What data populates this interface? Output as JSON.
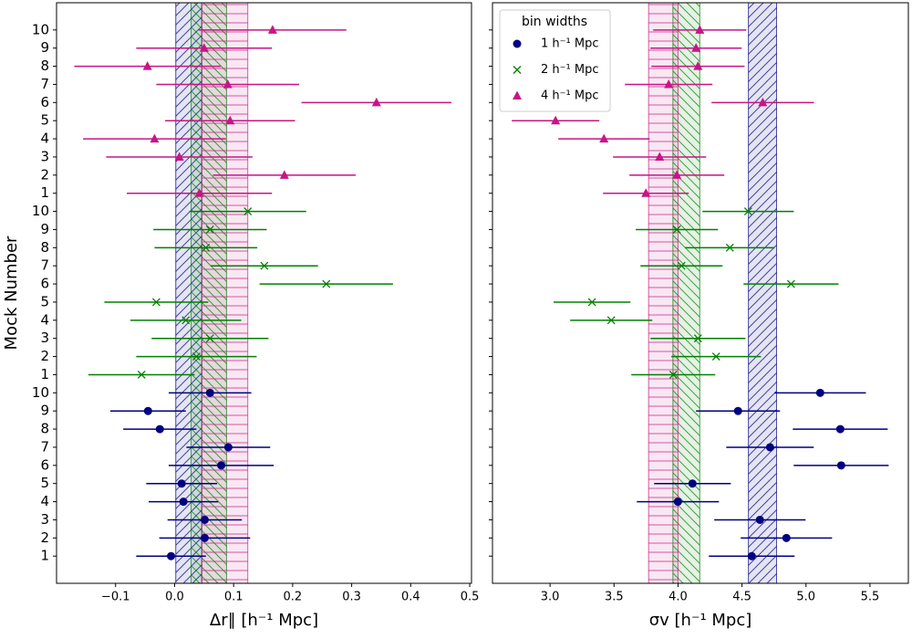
{
  "chart_data": [
    {
      "type": "errorbar",
      "xlabel": "Δr∥ [h⁻¹ Mpc]",
      "ylabel": "Mock Number",
      "xlim": [
        -0.2,
        0.503
      ],
      "ylim": [
        -0.5,
        31.5
      ],
      "xticks": [
        {
          "value": -0.1,
          "label": "−0.1"
        },
        {
          "value": 0,
          "label": "0.0"
        },
        0.1,
        0.2,
        0.3,
        0.4,
        0.5
      ],
      "yticks": [
        1,
        2,
        3,
        4,
        5,
        6,
        7,
        8,
        9,
        10,
        {
          "value": 11,
          "label": "1"
        },
        {
          "value": 12,
          "label": "2"
        },
        {
          "value": 13,
          "label": "3"
        },
        {
          "value": 14,
          "label": "4"
        },
        {
          "value": 15,
          "label": "5"
        },
        {
          "value": 16,
          "label": "6"
        },
        {
          "value": 17,
          "label": "7"
        },
        {
          "value": 18,
          "label": "8"
        },
        {
          "value": 19,
          "label": "9"
        },
        {
          "value": 20,
          "label": "10"
        },
        {
          "value": 21,
          "label": "1"
        },
        {
          "value": 22,
          "label": "2"
        },
        {
          "value": 23,
          "label": "3"
        },
        {
          "value": 24,
          "label": "4"
        },
        {
          "value": 25,
          "label": "5"
        },
        {
          "value": 26,
          "label": "6"
        },
        {
          "value": 27,
          "label": "7"
        },
        {
          "value": 28,
          "label": "8"
        },
        {
          "value": 29,
          "label": "9"
        },
        {
          "value": 30,
          "label": "10"
        }
      ],
      "series": [
        {
          "color": "#000080",
          "marker": "circle",
          "hatch": "/",
          "band": [
            0.002,
            0.046
          ],
          "y": [
            1,
            2,
            3,
            4,
            5,
            6,
            7,
            8,
            9,
            10
          ],
          "x": [
            -0.006,
            0.051,
            0.051,
            0.015,
            0.012,
            0.079,
            0.091,
            -0.025,
            -0.045,
            0.06
          ],
          "xerr": [
            0.059,
            0.077,
            0.063,
            0.059,
            0.06,
            0.089,
            0.071,
            0.062,
            0.064,
            0.07
          ]
        },
        {
          "color": "#008000",
          "marker": "x",
          "hatch": "\\",
          "band": [
            0.028,
            0.088
          ],
          "y": [
            11,
            12,
            13,
            14,
            15,
            16,
            17,
            18,
            19,
            20
          ],
          "x": [
            -0.056,
            0.037,
            0.06,
            0.019,
            -0.031,
            0.257,
            0.152,
            0.053,
            0.06,
            0.124
          ],
          "xerr": [
            0.09,
            0.102,
            0.099,
            0.094,
            0.088,
            0.113,
            0.091,
            0.087,
            0.096,
            0.099
          ]
        },
        {
          "color": "#c71585",
          "marker": "triangle",
          "hatch": "-",
          "band": [
            0.046,
            0.124
          ],
          "y": [
            21,
            22,
            23,
            24,
            25,
            26,
            27,
            28,
            29,
            30
          ],
          "x": [
            0.042,
            0.186,
            0.008,
            -0.034,
            0.094,
            0.342,
            0.09,
            -0.046,
            0.05,
            0.166
          ],
          "xerr": [
            0.123,
            0.121,
            0.124,
            0.121,
            0.11,
            0.127,
            0.121,
            0.124,
            0.115,
            0.125
          ]
        }
      ]
    },
    {
      "type": "errorbar",
      "xlabel": "σv [h⁻¹ Mpc]",
      "xlim": [
        2.55,
        5.8
      ],
      "ylim": [
        -0.5,
        31.5
      ],
      "xticks": [
        {
          "value": 3,
          "label": "3.0"
        },
        3.5,
        {
          "value": 4,
          "label": "4.0"
        },
        4.5,
        {
          "value": 5,
          "label": "5.0"
        },
        5.5
      ],
      "yticks": [
        1,
        2,
        3,
        4,
        5,
        6,
        7,
        8,
        9,
        10,
        11,
        12,
        13,
        14,
        15,
        16,
        17,
        18,
        19,
        20,
        21,
        22,
        23,
        24,
        25,
        26,
        27,
        28,
        29,
        30
      ],
      "legend": {
        "title": "bin widths",
        "loc": "upper left"
      },
      "series": [
        {
          "name": "1 h⁻¹ Mpc",
          "color": "#000080",
          "marker": "circle",
          "hatch": "/",
          "band": [
            4.55,
            4.77
          ],
          "y": [
            1,
            2,
            3,
            4,
            5,
            6,
            7,
            8,
            9,
            10
          ],
          "x": [
            4.576,
            4.847,
            4.64,
            3.999,
            4.113,
            5.275,
            4.719,
            5.268,
            4.469,
            5.111
          ],
          "xerr": [
            0.335,
            0.357,
            0.357,
            0.321,
            0.3,
            0.371,
            0.342,
            0.371,
            0.328,
            0.357
          ]
        },
        {
          "name": "2 h⁻¹ Mpc",
          "color": "#008000",
          "marker": "x",
          "hatch": "\\",
          "band": [
            3.96,
            4.17
          ],
          "y": [
            11,
            12,
            13,
            14,
            15,
            16,
            17,
            18,
            19,
            20
          ],
          "x": [
            3.963,
            4.298,
            4.156,
            3.478,
            3.328,
            4.883,
            4.027,
            4.405,
            3.991,
            4.548
          ],
          "xerr": [
            0.328,
            0.35,
            0.371,
            0.321,
            0.3,
            0.371,
            0.321,
            0.35,
            0.321,
            0.357
          ]
        },
        {
          "name": "4 h⁻¹ Mpc",
          "color": "#c71585",
          "marker": "triangle",
          "hatch": "-",
          "band": [
            3.77,
            4.0
          ],
          "y": [
            21,
            22,
            23,
            24,
            25,
            26,
            27,
            28,
            29,
            30
          ],
          "x": [
            3.749,
            3.991,
            3.856,
            3.421,
            3.043,
            4.662,
            3.927,
            4.156,
            4.141,
            4.17
          ],
          "xerr": [
            0.335,
            0.371,
            0.364,
            0.357,
            0.342,
            0.4,
            0.342,
            0.364,
            0.357,
            0.364
          ]
        }
      ]
    }
  ]
}
